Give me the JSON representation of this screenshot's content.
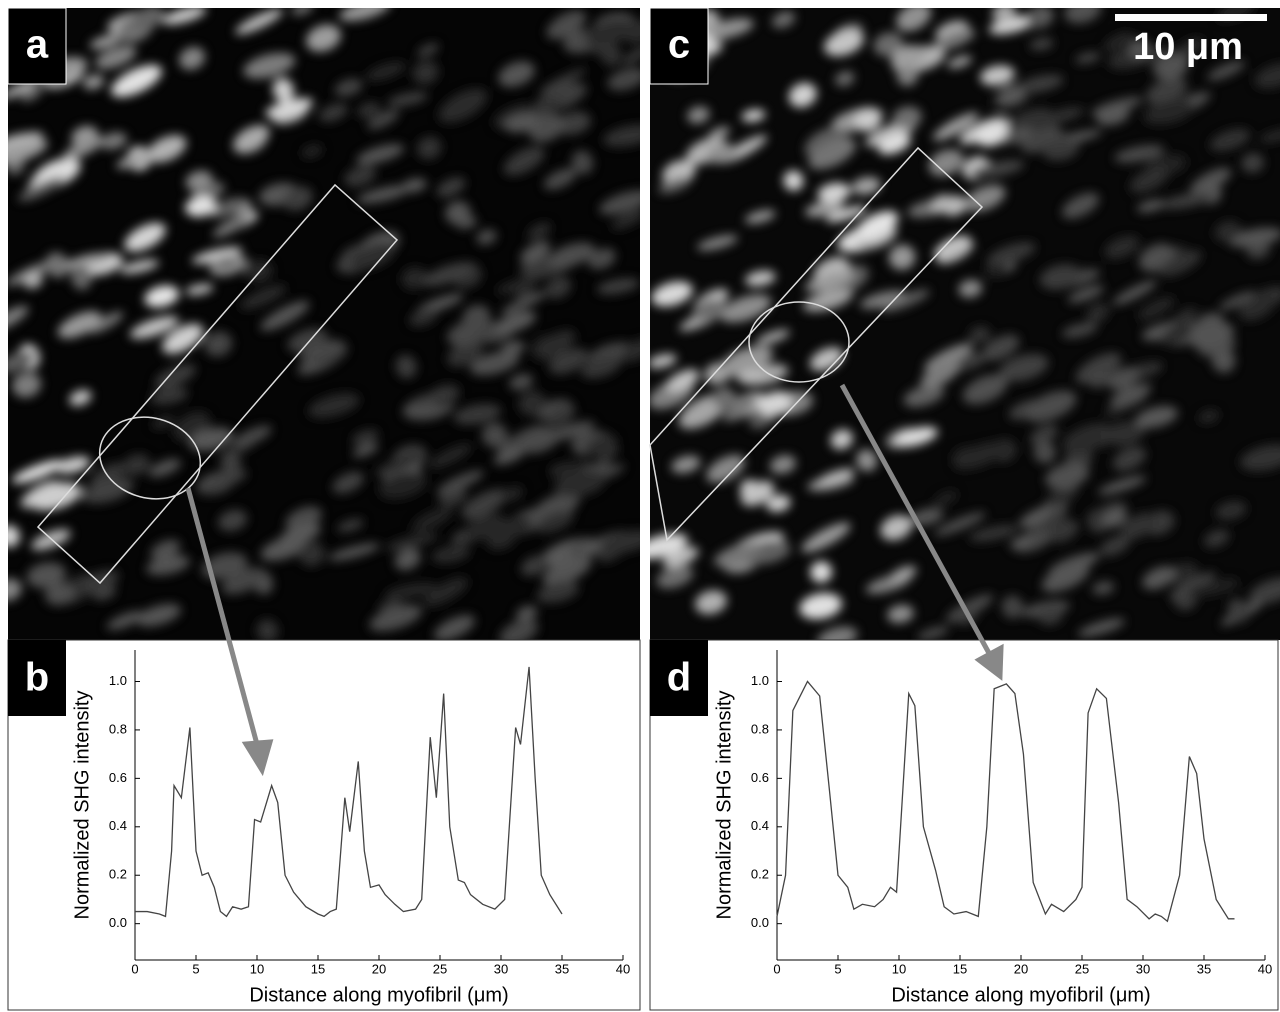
{
  "images": [
    {
      "label": "a"
    },
    {
      "label": "c",
      "scale_bar": "10 μm"
    }
  ],
  "chart_data": [
    {
      "type": "line",
      "panel_label": "b",
      "x_label": "Distance along myofibril (μm)",
      "y_label": "Normalized SHG intensity",
      "color": "#444444",
      "x": [
        0,
        1,
        2,
        2.5,
        3,
        3.2,
        3.8,
        4.5,
        5,
        5.5,
        6,
        6.5,
        7,
        7.5,
        8,
        8.7,
        9.3,
        9.8,
        10.3,
        11.2,
        11.7,
        12.3,
        13,
        14,
        15,
        15.5,
        16,
        16.5,
        17.2,
        17.6,
        18.3,
        18.8,
        19.3,
        20,
        20.5,
        21.3,
        22,
        23,
        23.5,
        24.2,
        24.7,
        25.3,
        25.8,
        26.5,
        27,
        27.5,
        28.5,
        29.5,
        30.3,
        31.2,
        31.6,
        32.3,
        32.8,
        33.3,
        34,
        35
      ],
      "values": [
        0.05,
        0.05,
        0.04,
        0.03,
        0.3,
        0.57,
        0.52,
        0.81,
        0.3,
        0.2,
        0.21,
        0.15,
        0.05,
        0.03,
        0.07,
        0.06,
        0.07,
        0.43,
        0.42,
        0.57,
        0.5,
        0.2,
        0.13,
        0.07,
        0.04,
        0.03,
        0.05,
        0.06,
        0.52,
        0.38,
        0.67,
        0.3,
        0.15,
        0.16,
        0.12,
        0.08,
        0.05,
        0.06,
        0.1,
        0.77,
        0.52,
        0.95,
        0.4,
        0.18,
        0.17,
        0.12,
        0.08,
        0.06,
        0.1,
        0.81,
        0.74,
        1.06,
        0.6,
        0.2,
        0.12,
        0.04
      ],
      "xlim": [
        0,
        40
      ],
      "xticks": [
        0,
        5,
        10,
        15,
        20,
        25,
        30,
        35,
        40
      ],
      "ylim": [
        -0.15,
        1.13
      ],
      "yticks": [
        {
          "value": 0,
          "label": "0.0"
        },
        0.2,
        0.4,
        0.6,
        0.8,
        {
          "value": 1,
          "label": "1.0"
        }
      ]
    },
    {
      "type": "line",
      "panel_label": "d",
      "x_label": "Distance along myofibril (μm)",
      "y_label": "Normalized SHG intensity",
      "color": "#444444",
      "x": [
        0,
        0.7,
        1.3,
        2.5,
        3.5,
        4.3,
        5,
        5.8,
        6.3,
        7,
        8,
        8.7,
        9.3,
        9.8,
        10.8,
        11.3,
        12,
        13,
        13.7,
        14.5,
        15.5,
        16.5,
        17.2,
        17.8,
        18.8,
        19.5,
        20.2,
        21,
        22,
        22.5,
        23.5,
        24.5,
        25,
        25.5,
        26.2,
        27,
        28,
        28.7,
        29.5,
        30.5,
        31,
        31.5,
        32,
        33,
        33.8,
        34.4,
        35,
        36,
        37,
        37.5
      ],
      "values": [
        0.03,
        0.2,
        0.88,
        1.0,
        0.94,
        0.55,
        0.2,
        0.15,
        0.06,
        0.08,
        0.07,
        0.1,
        0.15,
        0.13,
        0.95,
        0.9,
        0.4,
        0.22,
        0.07,
        0.04,
        0.05,
        0.03,
        0.4,
        0.97,
        0.99,
        0.95,
        0.7,
        0.17,
        0.04,
        0.08,
        0.05,
        0.1,
        0.15,
        0.87,
        0.97,
        0.93,
        0.5,
        0.1,
        0.07,
        0.02,
        0.04,
        0.03,
        0.01,
        0.2,
        0.69,
        0.62,
        0.35,
        0.1,
        0.02,
        0.02
      ],
      "xlim": [
        0,
        40
      ],
      "xticks": [
        0,
        5,
        10,
        15,
        20,
        25,
        30,
        35,
        40
      ],
      "ylim": [
        -0.15,
        1.13
      ],
      "yticks": [
        {
          "value": 0,
          "label": "0.0"
        },
        0.2,
        0.4,
        0.6,
        0.8,
        {
          "value": 1,
          "label": "1.0"
        }
      ]
    }
  ]
}
